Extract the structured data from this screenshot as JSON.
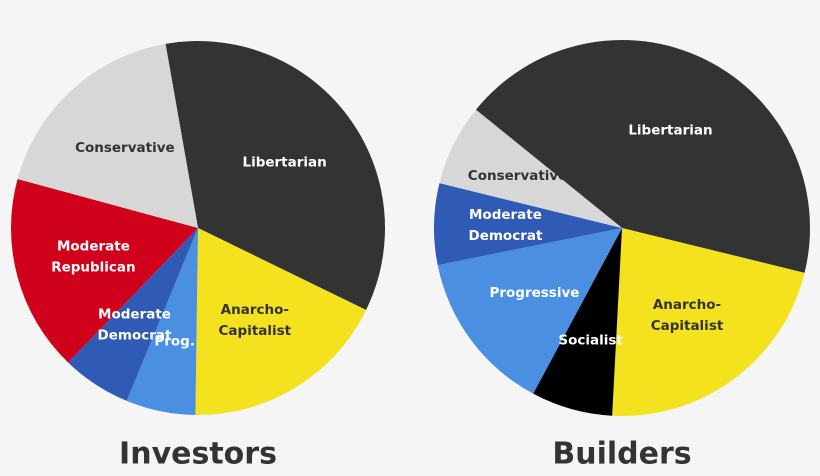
{
  "chart_data": [
    {
      "type": "pie",
      "title": "Investors",
      "categories": [
        "Libertarian",
        "Anarcho-Capitalist",
        "Prog.",
        "Moderate Democrat",
        "Moderate Republican",
        "Conservative"
      ],
      "values": [
        35,
        18,
        6,
        6,
        17,
        18
      ],
      "colors": [
        "#333333",
        "#f4e21f",
        "#4a8fe2",
        "#2f5bb7",
        "#d0021b",
        "#d7d7d7"
      ]
    },
    {
      "type": "pie",
      "title": "Builders",
      "categories": [
        "Libertarian",
        "Anarcho-Capitalist",
        "Socialist",
        "Progressive",
        "Moderate Democrat",
        "Conservative"
      ],
      "values": [
        43,
        22,
        7,
        14,
        7,
        7
      ],
      "colors": [
        "#333333",
        "#f4e21f",
        "#000000",
        "#4a8fe2",
        "#2f5bb7",
        "#d7d7d7"
      ]
    }
  ]
}
